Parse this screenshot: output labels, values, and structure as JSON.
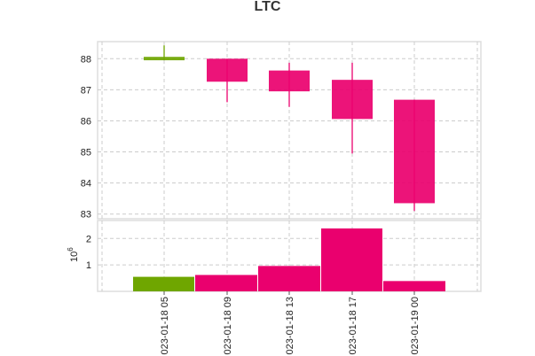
{
  "chart_data": {
    "type": "candlestick",
    "title": "LTC",
    "x": [
      "2023-01-18 05",
      "2023-01-18 09",
      "2023-01-18 13",
      "2023-01-18 17",
      "2023-01-19 00"
    ],
    "tick_labels": [
      "023-01-18 05",
      "023-01-18 09",
      "023-01-18 13",
      "023-01-18 17",
      "023-01-19 00"
    ],
    "price": {
      "open": [
        87.95,
        88.0,
        87.62,
        87.32,
        86.68
      ],
      "high": [
        88.43,
        88.0,
        87.87,
        87.87,
        86.68
      ],
      "low": [
        87.95,
        86.6,
        86.45,
        84.95,
        83.1
      ],
      "close": [
        88.06,
        87.26,
        86.95,
        86.06,
        83.35
      ],
      "ylim": [
        82.85,
        88.55
      ],
      "yticks": [
        83,
        84,
        85,
        86,
        87,
        88
      ]
    },
    "volume": {
      "values": [
        0.55,
        0.62,
        0.96,
        2.38,
        0.39
      ],
      "ylim": [
        0,
        2.68
      ],
      "yticks": [
        1,
        2
      ],
      "scale_label": "10",
      "scale_exponent": "6"
    },
    "grid": true,
    "colors": {
      "up": "#6fa600",
      "down": "#ea006e",
      "grid": "#cccccc",
      "spine": "#dddddd"
    }
  }
}
